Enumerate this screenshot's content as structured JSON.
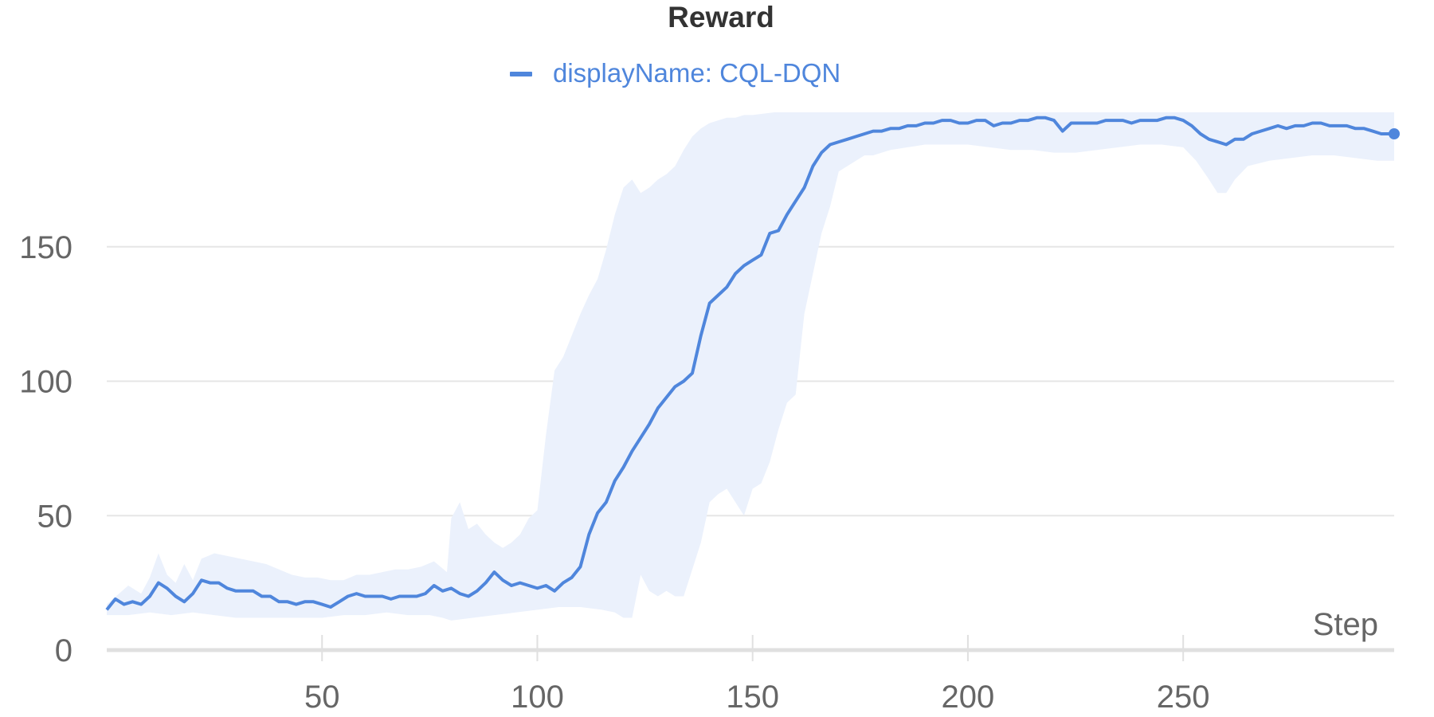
{
  "colors": {
    "series": "#4F86DC",
    "band": "#EBF1FC",
    "grid": "#E6E6E6",
    "axis": "#E0E0E0",
    "tick_text": "#666666",
    "title_text": "#333333"
  },
  "chart_data": {
    "type": "line",
    "title": "Reward",
    "xlabel": "Step",
    "ylabel": "",
    "xlim": [
      0,
      299
    ],
    "ylim": [
      0,
      200
    ],
    "xticks": [
      50,
      100,
      150,
      200,
      250
    ],
    "yticks": [
      0,
      50,
      100,
      150
    ],
    "grid": true,
    "legend": "top-center",
    "series": [
      {
        "name": "displayName: CQL-DQN",
        "color": "#4F86DC",
        "shaded_band": true,
        "points": [
          [
            0,
            15
          ],
          [
            2,
            19
          ],
          [
            4,
            17
          ],
          [
            6,
            18
          ],
          [
            8,
            17
          ],
          [
            10,
            20
          ],
          [
            12,
            25
          ],
          [
            14,
            23
          ],
          [
            16,
            20
          ],
          [
            18,
            18
          ],
          [
            20,
            21
          ],
          [
            22,
            26
          ],
          [
            24,
            25
          ],
          [
            26,
            25
          ],
          [
            28,
            23
          ],
          [
            30,
            22
          ],
          [
            32,
            22
          ],
          [
            34,
            22
          ],
          [
            36,
            20
          ],
          [
            38,
            20
          ],
          [
            40,
            18
          ],
          [
            42,
            18
          ],
          [
            44,
            17
          ],
          [
            46,
            18
          ],
          [
            48,
            18
          ],
          [
            50,
            17
          ],
          [
            52,
            16
          ],
          [
            54,
            18
          ],
          [
            56,
            20
          ],
          [
            58,
            21
          ],
          [
            60,
            20
          ],
          [
            62,
            20
          ],
          [
            64,
            20
          ],
          [
            66,
            19
          ],
          [
            68,
            20
          ],
          [
            70,
            20
          ],
          [
            72,
            20
          ],
          [
            74,
            21
          ],
          [
            76,
            24
          ],
          [
            78,
            22
          ],
          [
            80,
            23
          ],
          [
            82,
            21
          ],
          [
            84,
            20
          ],
          [
            86,
            22
          ],
          [
            88,
            25
          ],
          [
            90,
            29
          ],
          [
            92,
            26
          ],
          [
            94,
            24
          ],
          [
            96,
            25
          ],
          [
            98,
            24
          ],
          [
            100,
            23
          ],
          [
            102,
            24
          ],
          [
            104,
            22
          ],
          [
            106,
            25
          ],
          [
            108,
            27
          ],
          [
            110,
            31
          ],
          [
            112,
            43
          ],
          [
            114,
            51
          ],
          [
            116,
            55
          ],
          [
            118,
            63
          ],
          [
            120,
            68
          ],
          [
            122,
            74
          ],
          [
            124,
            79
          ],
          [
            126,
            84
          ],
          [
            128,
            90
          ],
          [
            130,
            94
          ],
          [
            132,
            98
          ],
          [
            134,
            100
          ],
          [
            136,
            103
          ],
          [
            138,
            117
          ],
          [
            140,
            129
          ],
          [
            142,
            132
          ],
          [
            144,
            135
          ],
          [
            146,
            140
          ],
          [
            148,
            143
          ],
          [
            150,
            145
          ],
          [
            152,
            147
          ],
          [
            154,
            155
          ],
          [
            156,
            156
          ],
          [
            158,
            162
          ],
          [
            160,
            167
          ],
          [
            162,
            172
          ],
          [
            164,
            180
          ],
          [
            166,
            185
          ],
          [
            168,
            188
          ],
          [
            170,
            189
          ],
          [
            172,
            190
          ],
          [
            174,
            191
          ],
          [
            176,
            192
          ],
          [
            178,
            193
          ],
          [
            180,
            193
          ],
          [
            182,
            194
          ],
          [
            184,
            194
          ],
          [
            186,
            195
          ],
          [
            188,
            195
          ],
          [
            190,
            196
          ],
          [
            192,
            196
          ],
          [
            194,
            197
          ],
          [
            196,
            197
          ],
          [
            198,
            196
          ],
          [
            200,
            196
          ],
          [
            202,
            197
          ],
          [
            204,
            197
          ],
          [
            206,
            195
          ],
          [
            208,
            196
          ],
          [
            210,
            196
          ],
          [
            212,
            197
          ],
          [
            214,
            197
          ],
          [
            216,
            198
          ],
          [
            218,
            198
          ],
          [
            220,
            197
          ],
          [
            222,
            193
          ],
          [
            224,
            196
          ],
          [
            226,
            196
          ],
          [
            228,
            196
          ],
          [
            230,
            196
          ],
          [
            232,
            197
          ],
          [
            234,
            197
          ],
          [
            236,
            197
          ],
          [
            238,
            196
          ],
          [
            240,
            197
          ],
          [
            242,
            197
          ],
          [
            244,
            197
          ],
          [
            246,
            198
          ],
          [
            248,
            198
          ],
          [
            250,
            197
          ],
          [
            252,
            195
          ],
          [
            254,
            192
          ],
          [
            256,
            190
          ],
          [
            258,
            189
          ],
          [
            260,
            188
          ],
          [
            262,
            190
          ],
          [
            264,
            190
          ],
          [
            266,
            192
          ],
          [
            268,
            193
          ],
          [
            270,
            194
          ],
          [
            272,
            195
          ],
          [
            274,
            194
          ],
          [
            276,
            195
          ],
          [
            278,
            195
          ],
          [
            280,
            196
          ],
          [
            282,
            196
          ],
          [
            284,
            195
          ],
          [
            286,
            195
          ],
          [
            288,
            195
          ],
          [
            290,
            194
          ],
          [
            292,
            194
          ],
          [
            294,
            193
          ],
          [
            296,
            192
          ],
          [
            298,
            192
          ],
          [
            299,
            192
          ]
        ],
        "band_upper": [
          [
            0,
            17
          ],
          [
            5,
            24
          ],
          [
            8,
            21
          ],
          [
            10,
            27
          ],
          [
            12,
            36
          ],
          [
            14,
            28
          ],
          [
            16,
            25
          ],
          [
            18,
            32
          ],
          [
            20,
            26
          ],
          [
            22,
            34
          ],
          [
            25,
            36
          ],
          [
            28,
            35
          ],
          [
            31,
            34
          ],
          [
            34,
            33
          ],
          [
            37,
            32
          ],
          [
            40,
            30
          ],
          [
            43,
            28
          ],
          [
            46,
            27
          ],
          [
            49,
            27
          ],
          [
            52,
            26
          ],
          [
            55,
            26
          ],
          [
            58,
            28
          ],
          [
            61,
            28
          ],
          [
            64,
            29
          ],
          [
            67,
            30
          ],
          [
            70,
            30
          ],
          [
            73,
            31
          ],
          [
            76,
            33
          ],
          [
            79,
            29
          ],
          [
            80,
            49
          ],
          [
            82,
            55
          ],
          [
            84,
            45
          ],
          [
            86,
            47
          ],
          [
            88,
            43
          ],
          [
            90,
            40
          ],
          [
            92,
            38
          ],
          [
            94,
            40
          ],
          [
            96,
            43
          ],
          [
            98,
            49
          ],
          [
            100,
            52
          ],
          [
            102,
            80
          ],
          [
            104,
            104
          ],
          [
            106,
            109
          ],
          [
            108,
            117
          ],
          [
            110,
            125
          ],
          [
            112,
            132
          ],
          [
            114,
            138
          ],
          [
            116,
            149
          ],
          [
            118,
            162
          ],
          [
            120,
            172
          ],
          [
            122,
            175
          ],
          [
            124,
            170
          ],
          [
            126,
            172
          ],
          [
            128,
            175
          ],
          [
            130,
            177
          ],
          [
            132,
            180
          ],
          [
            134,
            186
          ],
          [
            136,
            191
          ],
          [
            138,
            194
          ],
          [
            140,
            196
          ],
          [
            142,
            197
          ],
          [
            144,
            198
          ],
          [
            146,
            198
          ],
          [
            148,
            199
          ],
          [
            150,
            199
          ],
          [
            155,
            200
          ],
          [
            160,
            200
          ],
          [
            299,
            200
          ]
        ],
        "band_lower": [
          [
            0,
            13
          ],
          [
            5,
            13
          ],
          [
            10,
            14
          ],
          [
            15,
            13
          ],
          [
            20,
            14
          ],
          [
            25,
            13
          ],
          [
            30,
            12
          ],
          [
            35,
            12
          ],
          [
            40,
            12
          ],
          [
            45,
            12
          ],
          [
            50,
            12
          ],
          [
            55,
            13
          ],
          [
            60,
            13
          ],
          [
            65,
            14
          ],
          [
            70,
            13
          ],
          [
            75,
            13
          ],
          [
            78,
            12
          ],
          [
            80,
            11
          ],
          [
            85,
            12
          ],
          [
            90,
            13
          ],
          [
            95,
            14
          ],
          [
            100,
            15
          ],
          [
            105,
            16
          ],
          [
            110,
            16
          ],
          [
            115,
            15
          ],
          [
            118,
            14
          ],
          [
            120,
            12
          ],
          [
            122,
            12
          ],
          [
            124,
            28
          ],
          [
            126,
            22
          ],
          [
            128,
            20
          ],
          [
            130,
            22
          ],
          [
            132,
            20
          ],
          [
            134,
            20
          ],
          [
            136,
            30
          ],
          [
            138,
            40
          ],
          [
            140,
            55
          ],
          [
            142,
            58
          ],
          [
            144,
            60
          ],
          [
            146,
            55
          ],
          [
            148,
            50
          ],
          [
            150,
            60
          ],
          [
            152,
            62
          ],
          [
            154,
            70
          ],
          [
            156,
            82
          ],
          [
            158,
            92
          ],
          [
            160,
            95
          ],
          [
            162,
            125
          ],
          [
            164,
            140
          ],
          [
            166,
            155
          ],
          [
            168,
            165
          ],
          [
            170,
            178
          ],
          [
            172,
            180
          ],
          [
            174,
            182
          ],
          [
            176,
            184
          ],
          [
            178,
            184
          ],
          [
            180,
            185
          ],
          [
            182,
            186
          ],
          [
            186,
            187
          ],
          [
            190,
            188
          ],
          [
            195,
            188
          ],
          [
            200,
            188
          ],
          [
            205,
            187
          ],
          [
            210,
            186
          ],
          [
            215,
            186
          ],
          [
            220,
            185
          ],
          [
            225,
            185
          ],
          [
            230,
            186
          ],
          [
            235,
            187
          ],
          [
            240,
            188
          ],
          [
            245,
            188
          ],
          [
            250,
            187
          ],
          [
            253,
            182
          ],
          [
            256,
            175
          ],
          [
            258,
            170
          ],
          [
            260,
            170
          ],
          [
            262,
            175
          ],
          [
            265,
            180
          ],
          [
            270,
            182
          ],
          [
            275,
            183
          ],
          [
            280,
            184
          ],
          [
            285,
            184
          ],
          [
            290,
            183
          ],
          [
            295,
            182
          ],
          [
            299,
            182
          ]
        ]
      }
    ]
  }
}
